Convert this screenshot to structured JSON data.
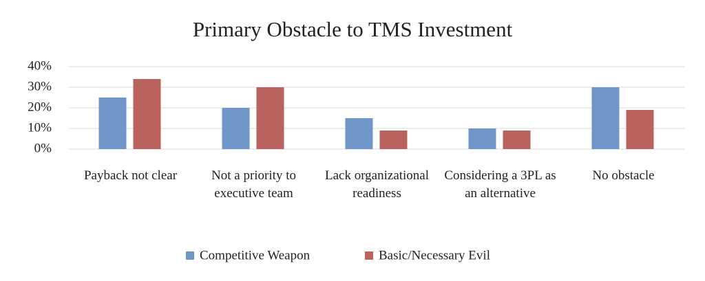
{
  "chart_data": {
    "type": "bar",
    "title": "Primary Obstacle to TMS Investment",
    "categories": [
      "Payback not clear",
      "Not a priority to executive team",
      "Lack organizational readiness",
      "Considering a 3PL as an alternative",
      "No obstacle"
    ],
    "series": [
      {
        "name": "Competitive Weapon",
        "color": "#7096c8",
        "values": [
          25,
          20,
          15,
          10,
          30
        ]
      },
      {
        "name": "Basic/Necessary Evil",
        "color": "#b9625e",
        "values": [
          34,
          30,
          9,
          9,
          19
        ]
      }
    ],
    "ylim": [
      0,
      40
    ],
    "yticks": [
      {
        "value": 0,
        "label": "0%"
      },
      {
        "value": 10,
        "label": "10%"
      },
      {
        "value": 20,
        "label": "20%"
      },
      {
        "value": 30,
        "label": "30%"
      },
      {
        "value": 40,
        "label": "40%"
      }
    ],
    "grid": true,
    "legend": "bottom"
  }
}
